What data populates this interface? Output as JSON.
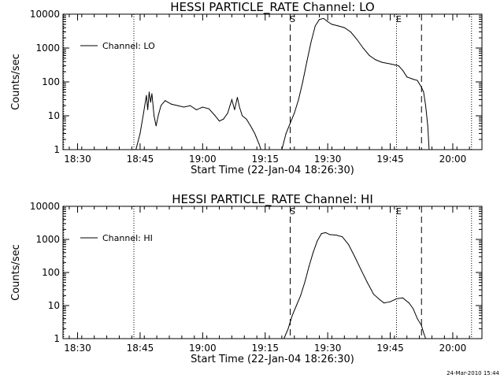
{
  "footer": {
    "timestamp": "24-Mar-2010 15:44"
  },
  "colors": {
    "background": "#ffffff",
    "foreground": "#000000"
  },
  "chart_data": [
    {
      "type": "line",
      "title": "HESSI PARTICLE_RATE Channel: LO",
      "xlabel": "Start Time (22-Jan-04 18:26:30)",
      "ylabel": "Counts/sec",
      "y_scale": "log",
      "xlim": [
        "18:26:30",
        "20:07:00"
      ],
      "ylim": [
        1,
        10000
      ],
      "x_ticks": [
        "18:30",
        "18:45",
        "19:00",
        "19:15",
        "19:30",
        "19:45",
        "20:00"
      ],
      "y_ticks": [
        "1",
        "10",
        "100",
        "1000",
        "10000"
      ],
      "legend": {
        "position": "top-left",
        "entries": [
          "Channel: LO"
        ]
      },
      "markers": [
        {
          "label": "S",
          "time": "19:21:00",
          "style": "dashed"
        },
        {
          "label": "E",
          "time": "19:46:30",
          "style": "dotted"
        },
        {
          "label": "",
          "time": "19:52:30",
          "style": "dashed"
        },
        {
          "label": "",
          "time": "18:43:30",
          "style": "dotted"
        },
        {
          "label": "",
          "time": "20:04:30",
          "style": "dotted"
        },
        {
          "label": "",
          "time": "18:26:40",
          "style": "dotted"
        }
      ],
      "series": [
        {
          "name": "Channel: LO",
          "points": [
            [
              "18:44:00",
              1
            ],
            [
              "18:45:00",
              3
            ],
            [
              "18:45:50",
              12
            ],
            [
              "18:46:30",
              40
            ],
            [
              "18:46:50",
              15
            ],
            [
              "18:47:10",
              50
            ],
            [
              "18:47:30",
              25
            ],
            [
              "18:47:50",
              45
            ],
            [
              "18:48:20",
              10
            ],
            [
              "18:48:50",
              5
            ],
            [
              "18:49:20",
              10
            ],
            [
              "18:50:00",
              20
            ],
            [
              "18:51:00",
              28
            ],
            [
              "18:52:30",
              22
            ],
            [
              "18:54:00",
              20
            ],
            [
              "18:55:30",
              18
            ],
            [
              "18:57:00",
              20
            ],
            [
              "18:58:30",
              15
            ],
            [
              "19:00:00",
              18
            ],
            [
              "19:01:30",
              16
            ],
            [
              "19:03:00",
              10
            ],
            [
              "19:04:00",
              7
            ],
            [
              "19:05:00",
              8
            ],
            [
              "19:06:00",
              12
            ],
            [
              "19:07:00",
              30
            ],
            [
              "19:07:40",
              15
            ],
            [
              "19:08:20",
              35
            ],
            [
              "19:08:50",
              18
            ],
            [
              "19:09:30",
              10
            ],
            [
              "19:10:30",
              8
            ],
            [
              "19:11:30",
              5
            ],
            [
              "19:12:30",
              3
            ],
            [
              "19:13:30",
              1.5
            ],
            [
              "19:14:00",
              1
            ],
            [
              "19:19:00",
              1
            ],
            [
              "19:20:00",
              3
            ],
            [
              "19:21:00",
              6
            ],
            [
              "19:22:00",
              12
            ],
            [
              "19:23:00",
              30
            ],
            [
              "19:24:00",
              100
            ],
            [
              "19:25:00",
              400
            ],
            [
              "19:26:00",
              1500
            ],
            [
              "19:27:00",
              4500
            ],
            [
              "19:28:00",
              7000
            ],
            [
              "19:29:00",
              7500
            ],
            [
              "19:30:00",
              6000
            ],
            [
              "19:31:00",
              5000
            ],
            [
              "19:32:30",
              4500
            ],
            [
              "19:34:00",
              4000
            ],
            [
              "19:35:30",
              3000
            ],
            [
              "19:37:00",
              1800
            ],
            [
              "19:38:30",
              1000
            ],
            [
              "19:40:00",
              600
            ],
            [
              "19:41:30",
              450
            ],
            [
              "19:43:00",
              380
            ],
            [
              "19:45:00",
              340
            ],
            [
              "19:47:00",
              300
            ],
            [
              "19:48:00",
              220
            ],
            [
              "19:49:00",
              140
            ],
            [
              "19:50:30",
              120
            ],
            [
              "19:51:30",
              110
            ],
            [
              "19:52:30",
              70
            ],
            [
              "19:53:00",
              50
            ],
            [
              "19:53:30",
              20
            ],
            [
              "19:54:00",
              5
            ],
            [
              "19:54:20",
              1
            ]
          ]
        }
      ]
    },
    {
      "type": "line",
      "title": "HESSI PARTICLE_RATE Channel: HI",
      "xlabel": "Start Time (22-Jan-04 18:26:30)",
      "ylabel": "Counts/sec",
      "y_scale": "log",
      "xlim": [
        "18:26:30",
        "20:07:00"
      ],
      "ylim": [
        1,
        10000
      ],
      "x_ticks": [
        "18:30",
        "18:45",
        "19:00",
        "19:15",
        "19:30",
        "19:45",
        "20:00"
      ],
      "y_ticks": [
        "1",
        "10",
        "100",
        "1000",
        "10000"
      ],
      "legend": {
        "position": "top-left",
        "entries": [
          "Channel: HI"
        ]
      },
      "markers": [
        {
          "label": "S",
          "time": "19:21:00",
          "style": "dashed"
        },
        {
          "label": "E",
          "time": "19:46:30",
          "style": "dotted"
        },
        {
          "label": "",
          "time": "19:52:30",
          "style": "dashed"
        },
        {
          "label": "",
          "time": "18:43:30",
          "style": "dotted"
        },
        {
          "label": "",
          "time": "20:04:30",
          "style": "dotted"
        },
        {
          "label": "",
          "time": "18:26:40",
          "style": "dotted"
        }
      ],
      "series": [
        {
          "name": "Channel: HI",
          "points": [
            [
              "19:19:30",
              1
            ],
            [
              "19:20:30",
              2
            ],
            [
              "19:21:30",
              5
            ],
            [
              "19:22:30",
              10
            ],
            [
              "19:23:30",
              20
            ],
            [
              "19:24:30",
              50
            ],
            [
              "19:25:30",
              150
            ],
            [
              "19:26:30",
              400
            ],
            [
              "19:27:30",
              900
            ],
            [
              "19:28:30",
              1500
            ],
            [
              "19:29:30",
              1600
            ],
            [
              "19:30:30",
              1400
            ],
            [
              "19:32:00",
              1350
            ],
            [
              "19:33:30",
              1200
            ],
            [
              "19:35:00",
              700
            ],
            [
              "19:36:30",
              300
            ],
            [
              "19:38:00",
              120
            ],
            [
              "19:39:30",
              50
            ],
            [
              "19:41:00",
              22
            ],
            [
              "19:42:30",
              15
            ],
            [
              "19:43:30",
              12
            ],
            [
              "19:45:00",
              13
            ],
            [
              "19:46:30",
              16
            ],
            [
              "19:48:00",
              17
            ],
            [
              "19:49:30",
              12
            ],
            [
              "19:50:30",
              8
            ],
            [
              "19:51:30",
              4
            ],
            [
              "19:52:30",
              2.5
            ],
            [
              "19:53:00",
              1.5
            ],
            [
              "19:53:30",
              1
            ]
          ]
        }
      ]
    }
  ]
}
